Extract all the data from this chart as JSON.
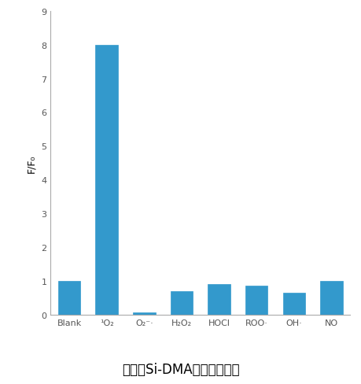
{
  "categories": [
    "Blank",
    "¹O₂",
    "O₂⁻·",
    "H₂O₂",
    "HOCl",
    "ROO·",
    "OH·",
    "NO"
  ],
  "values": [
    1.0,
    8.0,
    0.08,
    0.7,
    0.9,
    0.85,
    0.65,
    1.0
  ],
  "bar_color": "#3399cc",
  "ylabel": "F/F₀",
  "ylim": [
    0,
    9
  ],
  "yticks": [
    0,
    1,
    2,
    3,
    4,
    5,
    6,
    7,
    8,
    9
  ],
  "caption": "図２　Si-DMAの反応特異性",
  "caption_color": "#000000",
  "background_color": "#ffffff",
  "bar_width": 0.6,
  "xlabel_fontsize": 8,
  "ylabel_fontsize": 9,
  "caption_fontsize": 12
}
